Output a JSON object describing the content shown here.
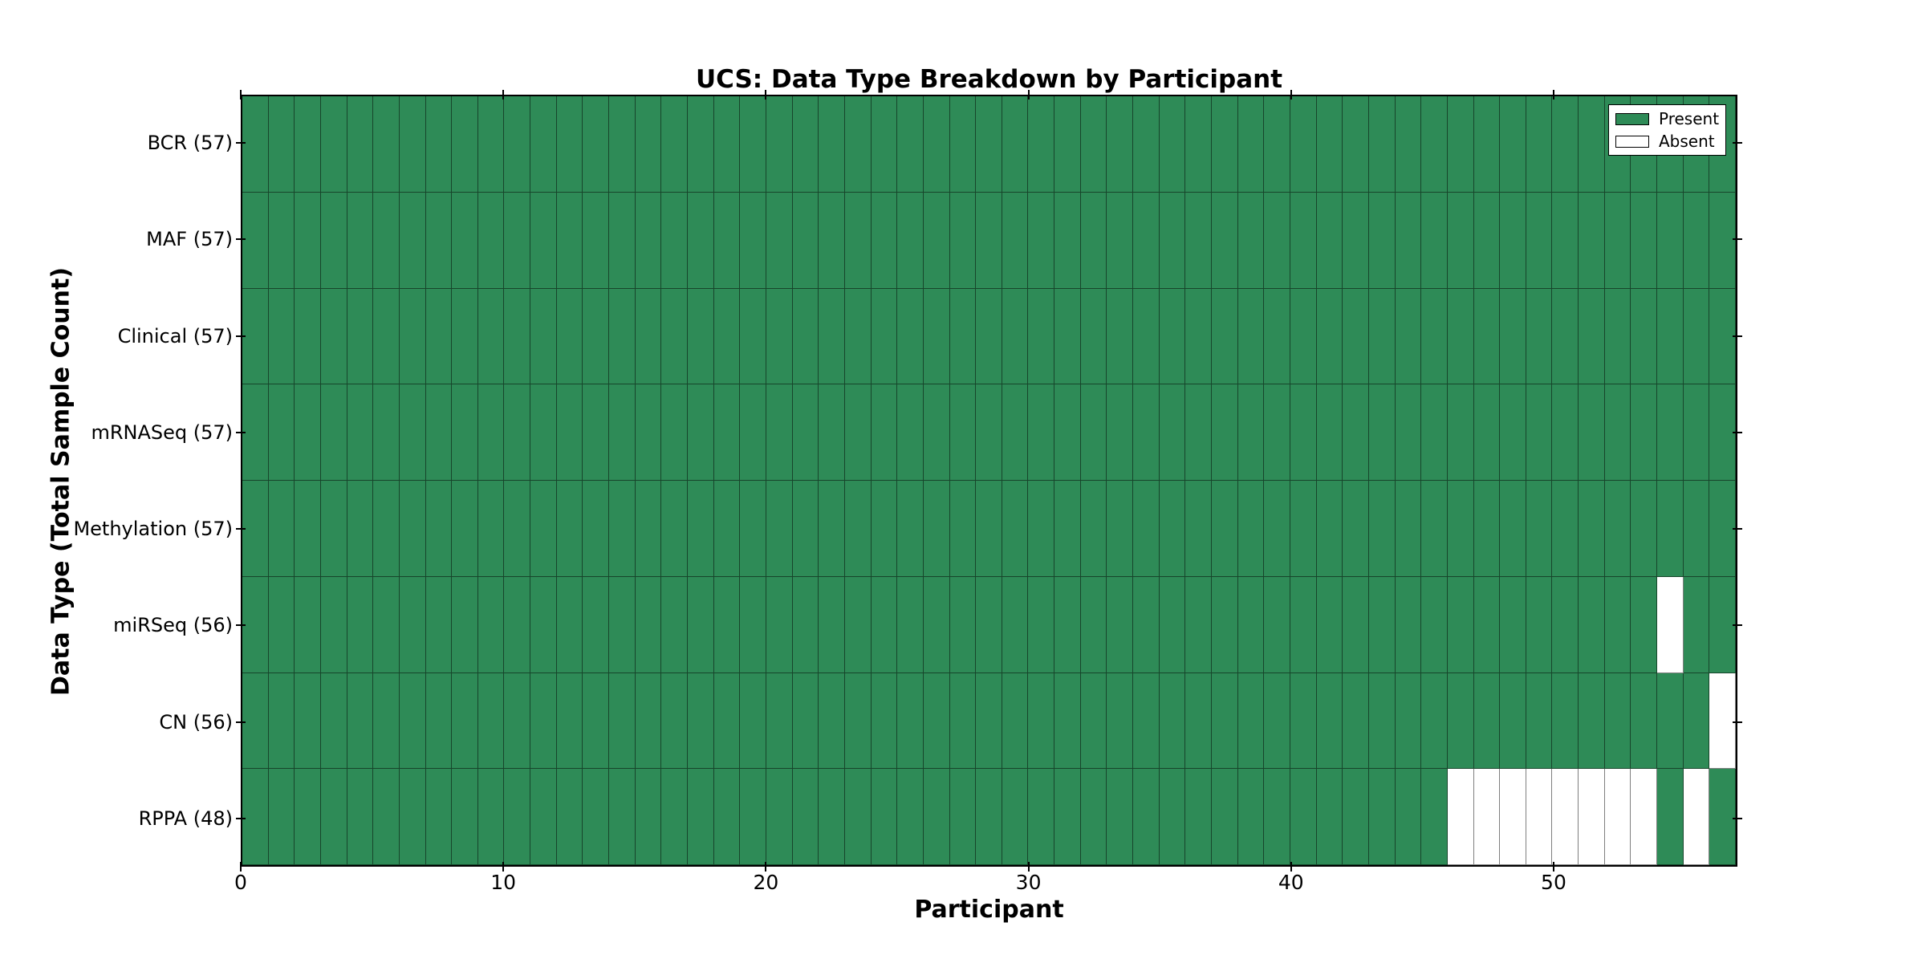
{
  "chart_data": {
    "type": "heatmap",
    "title": "UCS: Data Type Breakdown by Participant",
    "xlabel": "Participant",
    "ylabel": "Data Type (Total Sample Count)",
    "n_participants": 57,
    "x_ticks": [
      0,
      10,
      20,
      30,
      40,
      50
    ],
    "xlim": [
      0,
      57
    ],
    "grid": true,
    "legend_position": "upper right",
    "present_color": "#2E8B57",
    "absent_color": "#FFFFFF",
    "legend": [
      {
        "label": "Present",
        "color": "#2E8B57"
      },
      {
        "label": "Absent",
        "color": "#FFFFFF"
      }
    ],
    "rows": [
      {
        "label": "BCR (57)",
        "datatype": "BCR",
        "total_samples": 57,
        "absent_participants": []
      },
      {
        "label": "MAF (57)",
        "datatype": "MAF",
        "total_samples": 57,
        "absent_participants": []
      },
      {
        "label": "Clinical (57)",
        "datatype": "Clinical",
        "total_samples": 57,
        "absent_participants": []
      },
      {
        "label": "mRNASeq (57)",
        "datatype": "mRNASeq",
        "total_samples": 57,
        "absent_participants": []
      },
      {
        "label": "Methylation (57)",
        "datatype": "Methylation",
        "total_samples": 57,
        "absent_participants": []
      },
      {
        "label": "miRSeq (56)",
        "datatype": "miRSeq",
        "total_samples": 56,
        "absent_participants": [
          54
        ]
      },
      {
        "label": "CN (56)",
        "datatype": "CN",
        "total_samples": 56,
        "absent_participants": [
          56
        ]
      },
      {
        "label": "RPPA (48)",
        "datatype": "RPPA",
        "total_samples": 48,
        "absent_participants": [
          46,
          47,
          48,
          49,
          50,
          51,
          52,
          53,
          55
        ]
      }
    ]
  }
}
